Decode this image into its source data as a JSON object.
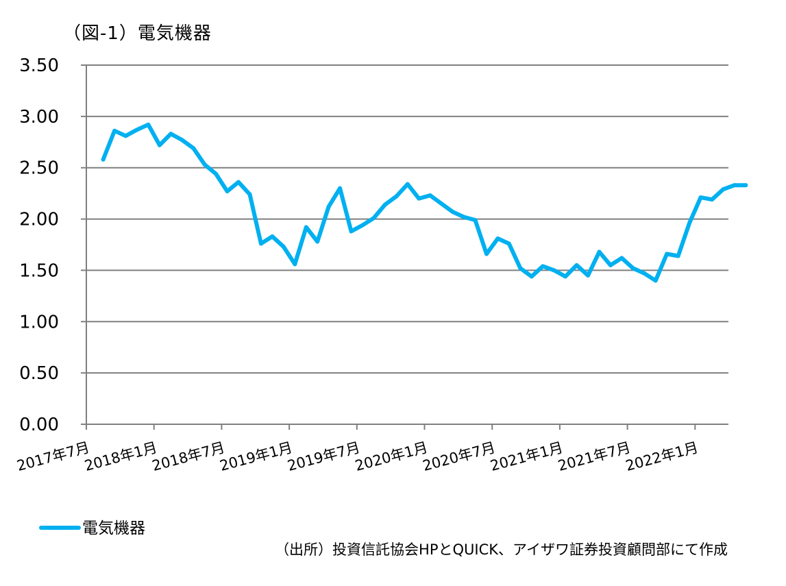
{
  "figure_title": "（図-1）電気機器",
  "source_note": "（出所）投資信託協会HPとQUICK、アイザワ証券投資顧問部にて作成",
  "colors": {
    "series": "#00b0f0",
    "grid": "#7f7f7f",
    "axis": "#7f7f7f"
  },
  "chart_data": {
    "type": "line",
    "title": "（図-1）電気機器",
    "xlabel": "",
    "ylabel": "",
    "ylim": [
      0,
      3.5
    ],
    "y_ticks": [
      "0.00",
      "0.50",
      "1.00",
      "1.50",
      "2.00",
      "2.50",
      "3.00",
      "3.50"
    ],
    "y_tick_values": [
      0,
      0.5,
      1.0,
      1.5,
      2.0,
      2.5,
      3.0,
      3.5
    ],
    "x_tick_labels": [
      "2017年7月",
      "2018年1月",
      "2018年7月",
      "2019年1月",
      "2019年7月",
      "2020年1月",
      "2020年7月",
      "2021年1月",
      "2021年7月",
      "2022年1月"
    ],
    "grid": true,
    "legend_position": "bottom-left",
    "series": [
      {
        "name": "電気機器",
        "x": [
          "2017-08",
          "2017-09",
          "2017-10",
          "2017-11",
          "2017-12",
          "2018-01",
          "2018-02",
          "2018-03",
          "2018-04",
          "2018-05",
          "2018-06",
          "2018-07",
          "2018-08",
          "2018-09",
          "2018-10",
          "2018-11",
          "2018-12",
          "2019-01",
          "2019-02",
          "2019-03",
          "2019-04",
          "2019-05",
          "2019-06",
          "2019-07",
          "2019-08",
          "2019-09",
          "2019-10",
          "2019-11",
          "2019-12",
          "2020-01",
          "2020-02",
          "2020-03",
          "2020-04",
          "2020-05",
          "2020-06",
          "2020-07",
          "2020-08",
          "2020-09",
          "2020-10",
          "2020-11",
          "2020-12",
          "2021-01",
          "2021-02",
          "2021-03",
          "2021-04",
          "2021-05",
          "2021-06",
          "2021-07",
          "2021-08",
          "2021-09",
          "2021-10",
          "2021-11",
          "2021-12",
          "2022-01",
          "2022-02",
          "2022-03",
          "2022-04",
          "2022-05"
        ],
        "values": [
          2.58,
          2.86,
          2.81,
          2.87,
          2.92,
          2.72,
          2.83,
          2.77,
          2.69,
          2.53,
          2.44,
          2.27,
          2.36,
          2.24,
          1.76,
          1.83,
          1.73,
          1.56,
          1.92,
          1.78,
          2.12,
          2.3,
          1.88,
          1.94,
          2.01,
          2.14,
          2.22,
          2.34,
          2.2,
          2.23,
          2.15,
          2.07,
          2.02,
          1.99,
          1.66,
          1.81,
          1.76,
          1.52,
          1.44,
          1.54,
          1.5,
          1.44,
          1.55,
          1.45,
          1.68,
          1.55,
          1.62,
          1.52,
          1.47,
          1.4,
          1.66,
          1.64,
          1.96,
          2.21,
          2.19,
          2.29,
          2.33,
          2.33
        ]
      }
    ]
  }
}
